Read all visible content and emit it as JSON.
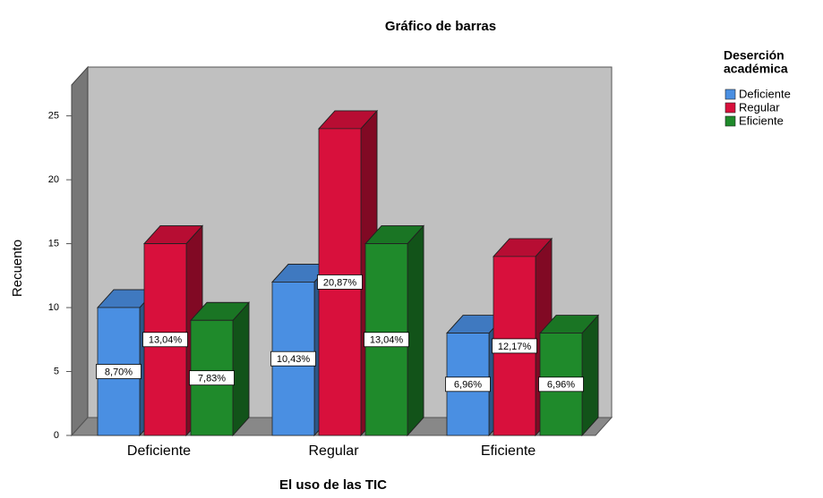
{
  "chart_data": {
    "type": "bar3d",
    "title": "Gráfico de barras",
    "x_label": "El uso de las TIC",
    "y_label": "Recuento",
    "categories": [
      "Deficiente",
      "Regular",
      "Eficiente"
    ],
    "legend_title": [
      "Deserción",
      "académica"
    ],
    "series": [
      {
        "name": "Deficiente",
        "color": "#4a8fe2",
        "values": [
          10,
          12,
          8
        ],
        "data_labels": [
          "8,70%",
          "10,43%",
          "6,96%"
        ]
      },
      {
        "name": "Regular",
        "color": "#d8103c",
        "values": [
          15,
          24,
          14
        ],
        "data_labels": [
          "13,04%",
          "20,87%",
          "12,17%"
        ]
      },
      {
        "name": "Eficiente",
        "color": "#1f8a2b",
        "values": [
          9,
          15,
          8
        ],
        "data_labels": [
          "7,83%",
          "13,04%",
          "6,96%"
        ]
      }
    ],
    "ylim": [
      0,
      27
    ],
    "yticks": [
      0,
      5,
      10,
      15,
      20,
      25
    ],
    "legend": "right"
  }
}
